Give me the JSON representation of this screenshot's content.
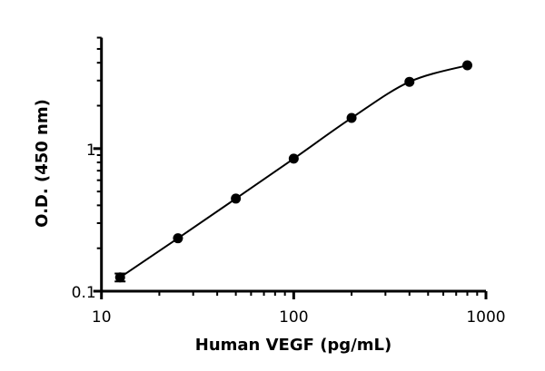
{
  "chart_data": {
    "type": "scatter",
    "title": "",
    "xlabel": "Human VEGF (pg/mL)",
    "ylabel": "O.D. (450 nm)",
    "xscale": "log",
    "yscale": "log",
    "xlim": [
      10,
      1000
    ],
    "ylim": [
      0.1,
      6
    ],
    "x_ticks": [
      10,
      100,
      1000
    ],
    "x_tick_labels": [
      "10",
      "100",
      "1000"
    ],
    "y_ticks": [
      0.1,
      1
    ],
    "y_tick_labels": [
      "0.1",
      "1"
    ],
    "grid": false,
    "legend": "none",
    "fit_curve": true,
    "series": [
      {
        "x": [
          12.5,
          25,
          50,
          100,
          200,
          400,
          800
        ],
        "y": [
          0.125,
          0.235,
          0.446,
          0.85,
          1.64,
          2.94,
          3.84
        ],
        "y_error": [
          0.008,
          0,
          0,
          0,
          0,
          0,
          0
        ],
        "color": "#000000"
      }
    ]
  }
}
